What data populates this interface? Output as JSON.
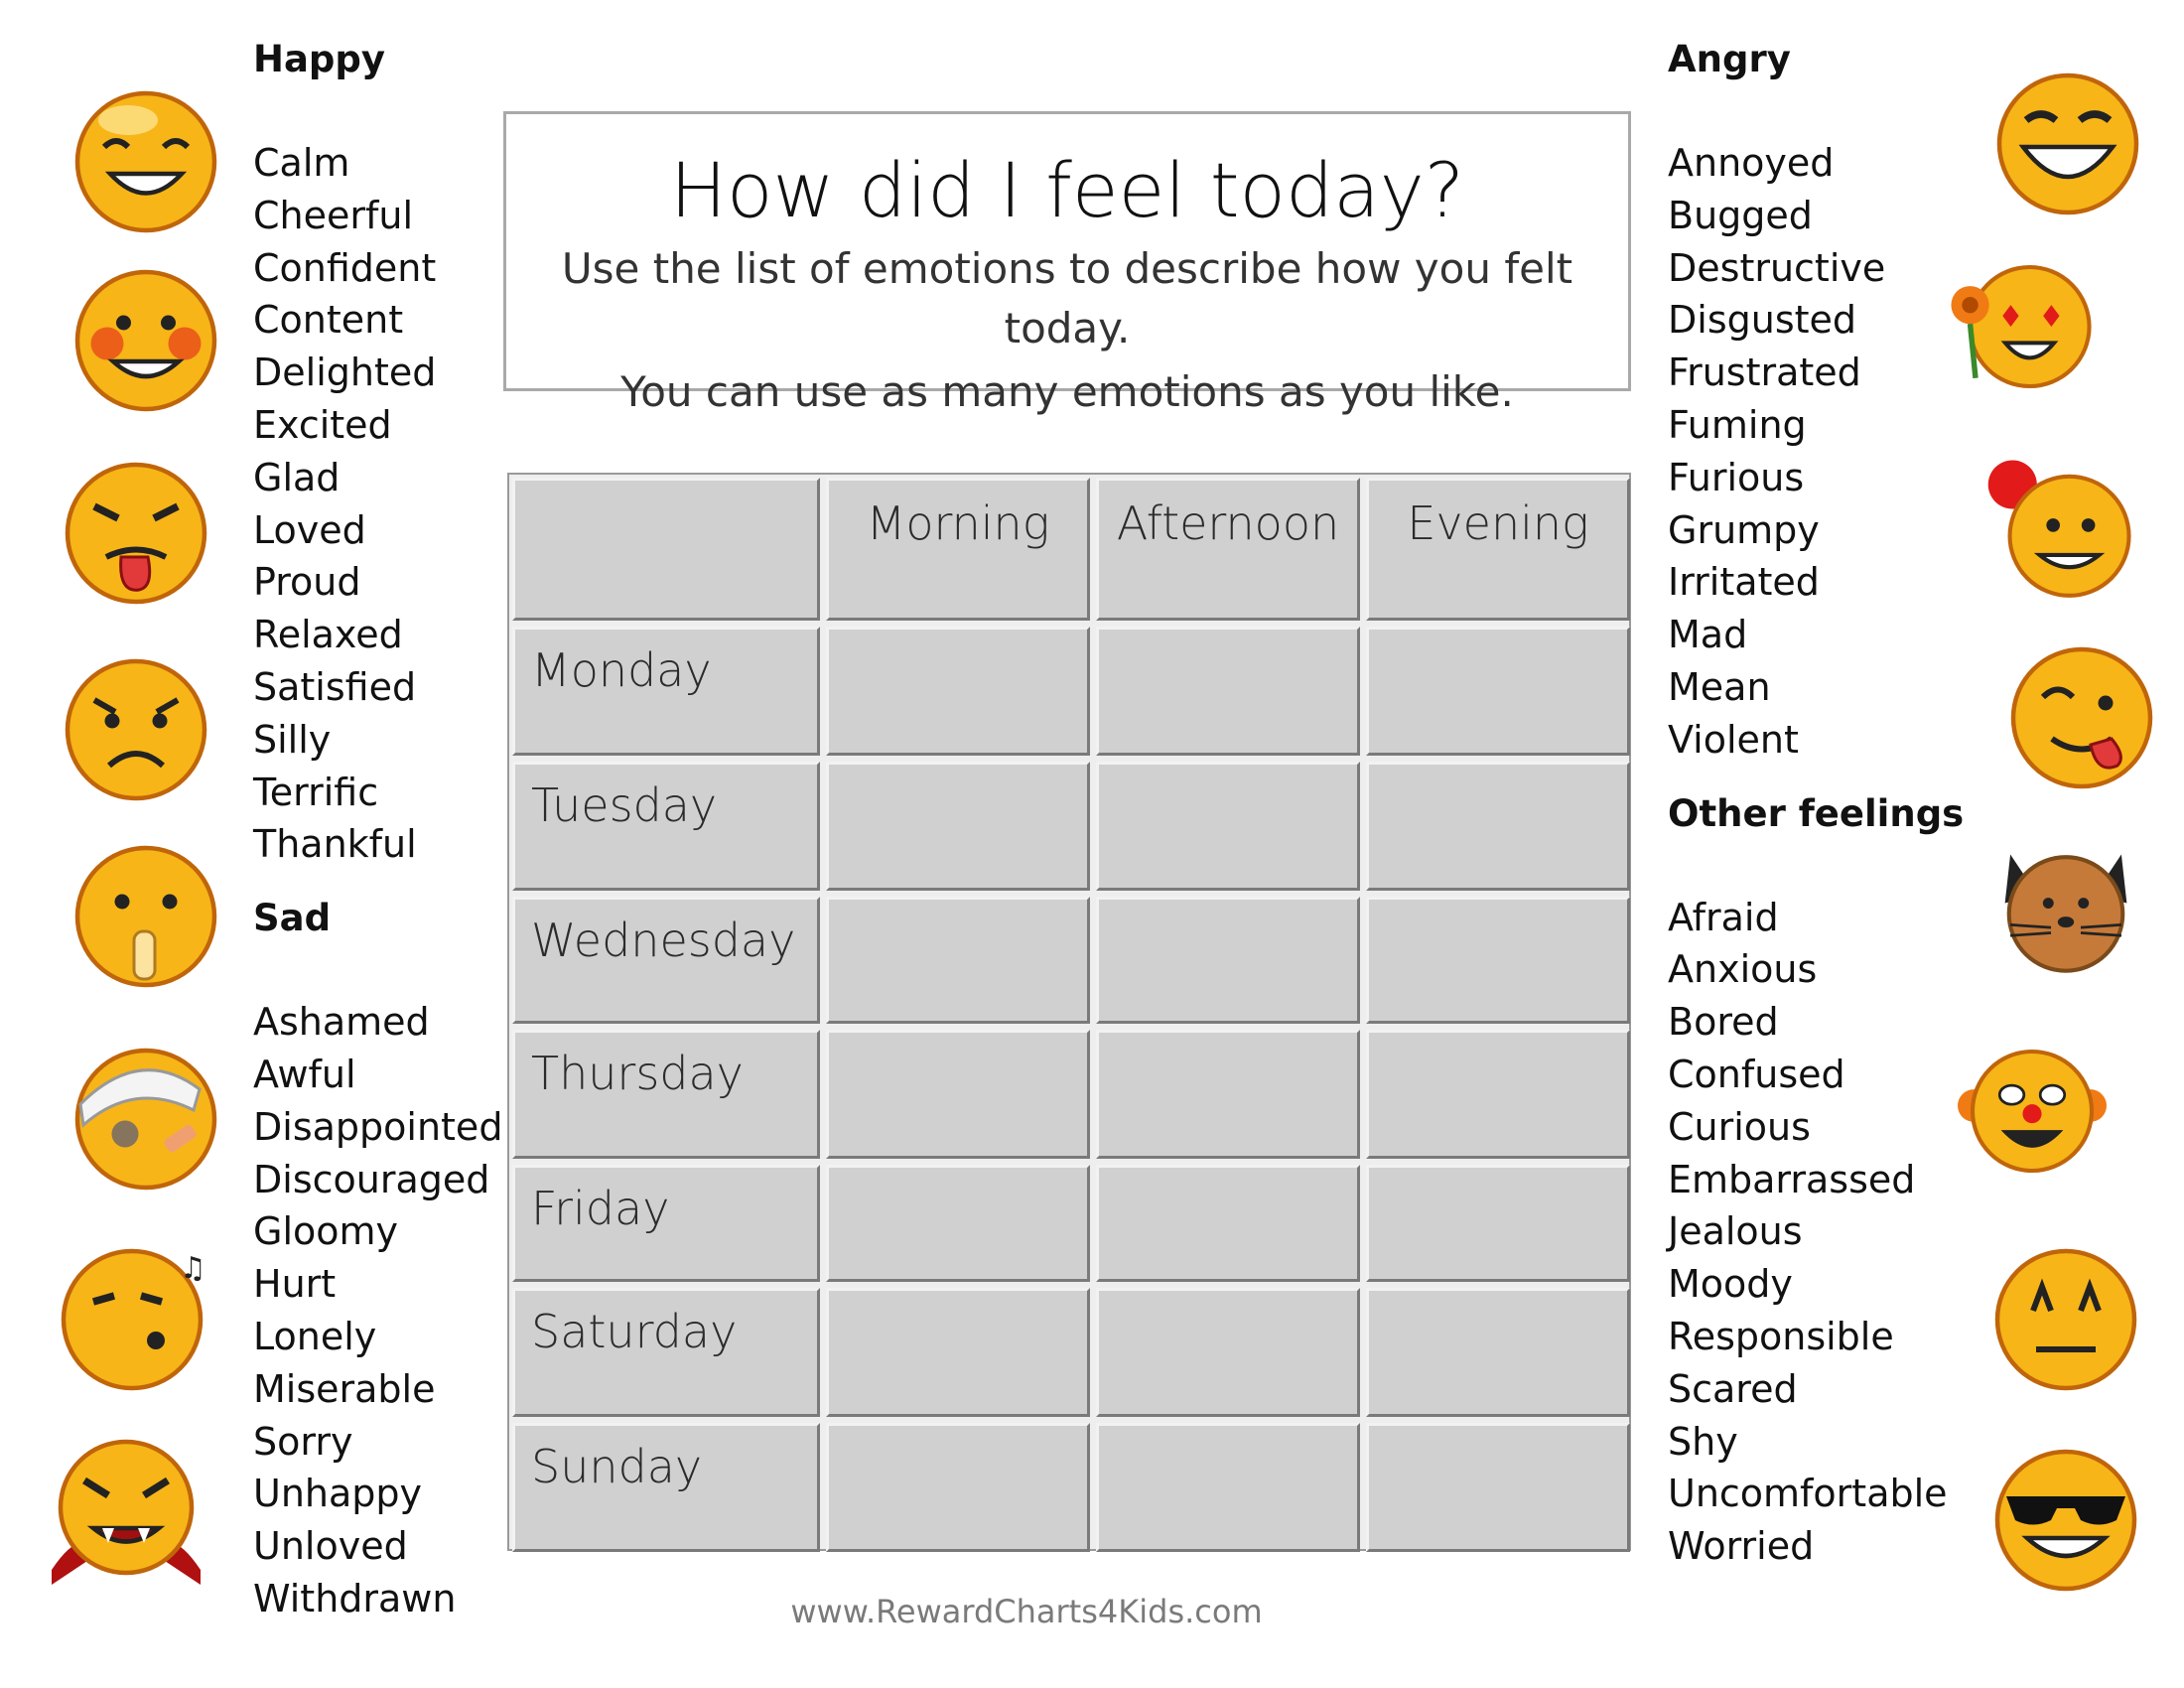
{
  "title": "How did I feel today?",
  "subtitle_line1": "Use the list of emotions to describe how you felt today.",
  "subtitle_line2": "You can use as many emotions as you like.",
  "columns": [
    "",
    "Morning",
    "Afternoon",
    "Evening"
  ],
  "days": [
    "Monday",
    "Tuesday",
    "Wednesday",
    "Thursday",
    "Friday",
    "Saturday",
    "Sunday"
  ],
  "happy": {
    "heading": "Happy",
    "items": [
      "Calm",
      "Cheerful",
      "Confident",
      "Content",
      "Delighted",
      "Excited",
      "Glad",
      "Loved",
      "Proud",
      "Relaxed",
      "Satisfied",
      "Silly",
      "Terrific",
      "Thankful"
    ]
  },
  "sad": {
    "heading": "Sad",
    "items": [
      "Ashamed",
      "Awful",
      "Disappointed",
      "Discouraged",
      "Gloomy",
      "Hurt",
      "Lonely",
      "Miserable",
      "Sorry",
      "Unhappy",
      "Unloved",
      "Withdrawn"
    ]
  },
  "angry": {
    "heading": "Angry",
    "items": [
      "Annoyed",
      "Bugged",
      "Destructive",
      "Disgusted",
      "Frustrated",
      "Fuming",
      "Furious",
      "Grumpy",
      "Irritated",
      "Mad",
      "Mean",
      "Violent"
    ]
  },
  "other": {
    "heading": "Other feelings",
    "items": [
      "Afraid",
      "Anxious",
      "Bored",
      "Confused",
      "Curious",
      "Embarrassed",
      "Jealous",
      "Moody",
      "Responsible",
      "Scared",
      "Shy",
      "Uncomfortable",
      "Worried"
    ]
  },
  "footer": "www.RewardCharts4Kids.com",
  "colors": {
    "cell": "#d0d0d0",
    "face": "#f7b518",
    "face_edge": "#c0650a"
  },
  "emoji_icons": [
    "smile-emoji-icon",
    "blush-emoji-icon",
    "tongue-emoji-icon",
    "worried-emoji-icon",
    "shush-emoji-icon",
    "bandaged-emoji-icon",
    "whistle-emoji-icon",
    "vampire-emoji-icon",
    "grin-emoji-icon",
    "flower-love-emoji-icon",
    "balloon-emoji-icon",
    "silly-emoji-icon",
    "cat-emoji-icon",
    "clown-emoji-icon",
    "uneasy-emoji-icon",
    "sunglasses-emoji-icon"
  ]
}
